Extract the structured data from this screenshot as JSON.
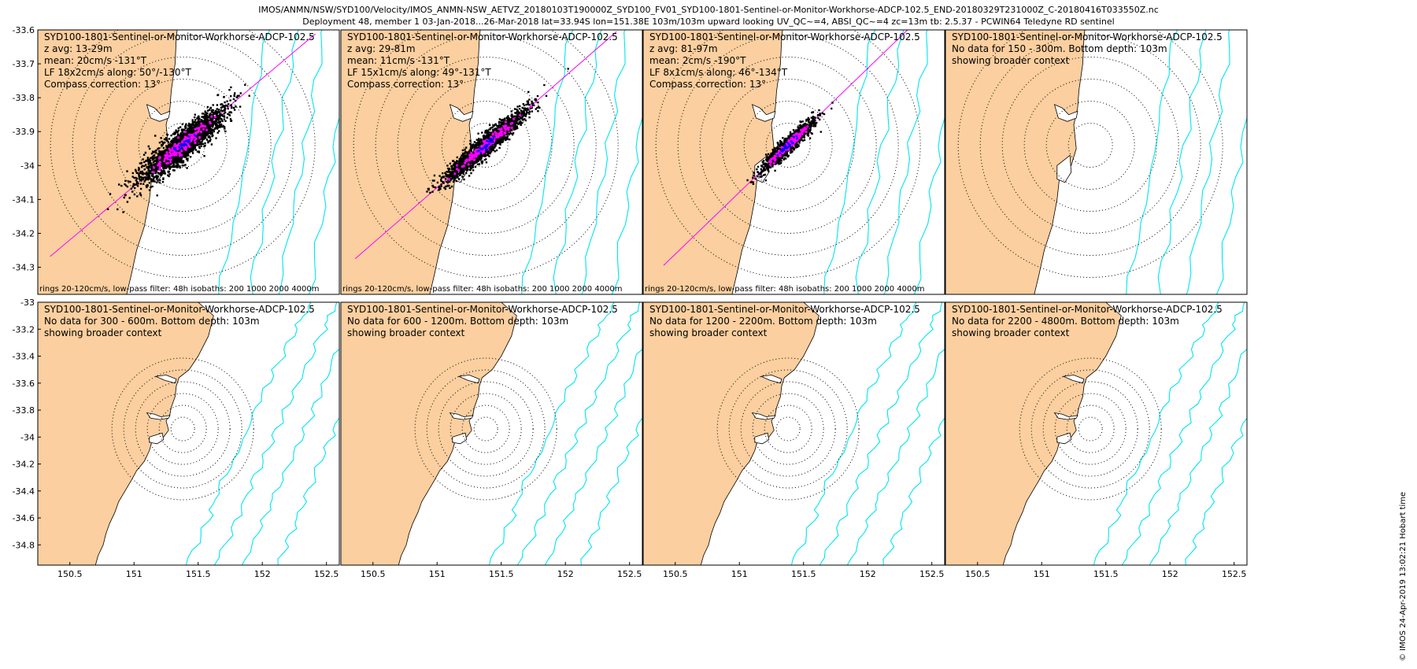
{
  "header": {
    "line1": "IMOS/ANMN/NSW/SYD100/Velocity/IMOS_ANMN-NSW_AETVZ_20180103T190000Z_SYD100_FV01_SYD100-1801-Sentinel-or-Monitor-Workhorse-ADCP-102.5_END-20180329T231000Z_C-20180416T033550Z.nc",
    "line2": "Deployment 48, member 1 03-Jan-2018...26-Mar-2018 lat=33.94S lon=151.38E 103m/103m upward looking UV_QC~=4, ABSI_QC~=4 zc=13m tb: 2.5.37 - PCWIN64 Teledyne RD sentinel"
  },
  "credit": "© IMOS 24-Apr-2019 13:02:21 Hobart time",
  "colors": {
    "land": "#fbcf9f",
    "isobath": "#00e5ee",
    "axis_line": "#ff00ff",
    "scatter": "#000000",
    "lowpass": "#ff00ff",
    "mean": "#0000ff"
  },
  "chart_data": [
    {
      "type": "scatter",
      "panel": "top-1",
      "title_lines": [
        "SYD100-1801-Sentinel-or-Monitor-Workhorse-ADCP-102.5",
        "z avg: 13-29m",
        "mean: 20cm/s -131°T",
        "LF 18x2cm/s along: 50°/-130°T",
        "Compass correction: 13°"
      ],
      "footer": "rings 20-120cm/s, low-pass filter: 48h isobaths: 200 1000 2000 4000m",
      "ylim": [
        -34.38,
        -33.6
      ],
      "yticks": [
        -33.6,
        -33.7,
        -33.8,
        -33.9,
        -34,
        -34.1,
        -34.2,
        -34.3
      ],
      "center": [
        151.38,
        -33.94
      ],
      "along_deg": 50,
      "spread": [
        0.55,
        0.13
      ],
      "n_points": 2400
    },
    {
      "type": "scatter",
      "panel": "top-2",
      "title_lines": [
        "SYD100-1801-Sentinel-or-Monitor-Workhorse-ADCP-102.5",
        "z avg: 29-81m",
        "mean: 11cm/s -131°T",
        "LF 15x1cm/s along: 49°-131°T",
        "Compass correction: 13°"
      ],
      "footer": "rings 20-120cm/s, low-pass filter: 48h isobaths: 200 1000 2000 4000m",
      "ylim": [
        -34.38,
        -33.6
      ],
      "center": [
        151.38,
        -33.94
      ],
      "along_deg": 49,
      "spread": [
        0.55,
        0.085
      ],
      "n_points": 2000
    },
    {
      "type": "scatter",
      "panel": "top-3",
      "title_lines": [
        "SYD100-1801-Sentinel-or-Monitor-Workhorse-ADCP-102.5",
        "z avg: 81-97m",
        "mean: 2cm/s -190°T",
        "LF 8x1cm/s along: 46°-134°T",
        "Compass correction: 13°"
      ],
      "footer": "rings 20-120cm/s, low-pass filter: 48h isobaths: 200 1000 2000 4000m",
      "ylim": [
        -34.38,
        -33.6
      ],
      "center": [
        151.38,
        -33.94
      ],
      "along_deg": 46,
      "spread": [
        0.36,
        0.065
      ],
      "n_points": 1300
    },
    {
      "type": "map",
      "panel": "top-4",
      "title_lines": [
        "SYD100-1801-Sentinel-or-Monitor-Workhorse-ADCP-102.5",
        "No data for 150 - 300m. Bottom depth: 103m",
        "showing broader context"
      ],
      "ylim": [
        -34.38,
        -33.6
      ]
    },
    {
      "type": "map",
      "panel": "bottom-1",
      "title_lines": [
        "SYD100-1801-Sentinel-or-Monitor-Workhorse-ADCP-102.5",
        "No data for 300 - 600m. Bottom depth: 103m",
        "showing broader context"
      ],
      "xlim": [
        150.25,
        152.6
      ],
      "xticks": [
        150.5,
        151,
        151.5,
        152,
        152.5
      ],
      "ylim": [
        -34.95,
        -33
      ],
      "yticks": [
        -33,
        -33.2,
        -33.4,
        -33.6,
        -33.8,
        -34,
        -34.2,
        -34.4,
        -34.6,
        -34.8
      ]
    },
    {
      "type": "map",
      "panel": "bottom-2",
      "title_lines": [
        "SYD100-1801-Sentinel-or-Monitor-Workhorse-ADCP-102.5",
        "No data for 600 - 1200m. Bottom depth: 103m",
        "showing broader context"
      ],
      "xlim": [
        150.25,
        152.6
      ],
      "xticks": [
        150.5,
        151,
        151.5,
        152,
        152.5
      ],
      "ylim": [
        -34.95,
        -33
      ]
    },
    {
      "type": "map",
      "panel": "bottom-3",
      "title_lines": [
        "SYD100-1801-Sentinel-or-Monitor-Workhorse-ADCP-102.5",
        "No data for 1200 - 2200m. Bottom depth: 103m",
        "showing broader context"
      ],
      "xlim": [
        150.25,
        152.6
      ],
      "xticks": [
        150.5,
        151,
        151.5,
        152,
        152.5
      ],
      "ylim": [
        -34.95,
        -33
      ]
    },
    {
      "type": "map",
      "panel": "bottom-4",
      "title_lines": [
        "SYD100-1801-Sentinel-or-Monitor-Workhorse-ADCP-102.5",
        "No data for 2200 - 4800m. Bottom depth: 103m",
        "showing broader context"
      ],
      "xlim": [
        150.25,
        152.6
      ],
      "xticks": [
        150.5,
        151,
        151.5,
        152,
        152.5
      ],
      "ylim": [
        -34.95,
        -33
      ]
    }
  ]
}
